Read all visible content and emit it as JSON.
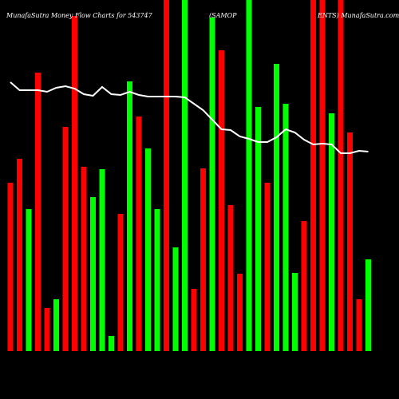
{
  "chart_data": {
    "type": "bar",
    "title": "MunafaSutra  Money Flow  Charts for 543747",
    "subtitle": "(SAMOP",
    "subtitle2": "ENTS) MunafaSutra.com",
    "ylim": [
      0,
      440
    ],
    "values": [
      211,
      241,
      178,
      349,
      54,
      65,
      281,
      420,
      231,
      193,
      228,
      19,
      172,
      338,
      294,
      254,
      178,
      440,
      130,
      440,
      78,
      229,
      418,
      377,
      183,
      97,
      440,
      306,
      211,
      360,
      310,
      98,
      163,
      440,
      440,
      298,
      440,
      274,
      65,
      115
    ],
    "colors": [
      "#ff0000",
      "#ff0000",
      "#00ff00",
      "#ff0000",
      "#ff0000",
      "#00ff00",
      "#ff0000",
      "#ff0000",
      "#ff0000",
      "#00ff00",
      "#00ff00",
      "#00ff00",
      "#ff0000",
      "#00ff00",
      "#ff0000",
      "#00ff00",
      "#00ff00",
      "#ff0000",
      "#00ff00",
      "#00ff00",
      "#ff0000",
      "#ff0000",
      "#00ff00",
      "#ff0000",
      "#ff0000",
      "#ff0000",
      "#00ff00",
      "#00ff00",
      "#ff0000",
      "#00ff00",
      "#00ff00",
      "#00ff00",
      "#ff0000",
      "#ff0000",
      "#ff0000",
      "#00ff00",
      "#ff0000",
      "#ff0000",
      "#ff0000",
      "#00ff00"
    ],
    "line": {
      "color": "#ffffff",
      "values": [
        337,
        327,
        327,
        327,
        325,
        330,
        332,
        329,
        322,
        320,
        331,
        322,
        321,
        325,
        321,
        319,
        319,
        319,
        319,
        318,
        310,
        302,
        290,
        278,
        277,
        269,
        266,
        262,
        262,
        268,
        278,
        274,
        265,
        259,
        260,
        259,
        248,
        248,
        251,
        250
      ]
    }
  }
}
